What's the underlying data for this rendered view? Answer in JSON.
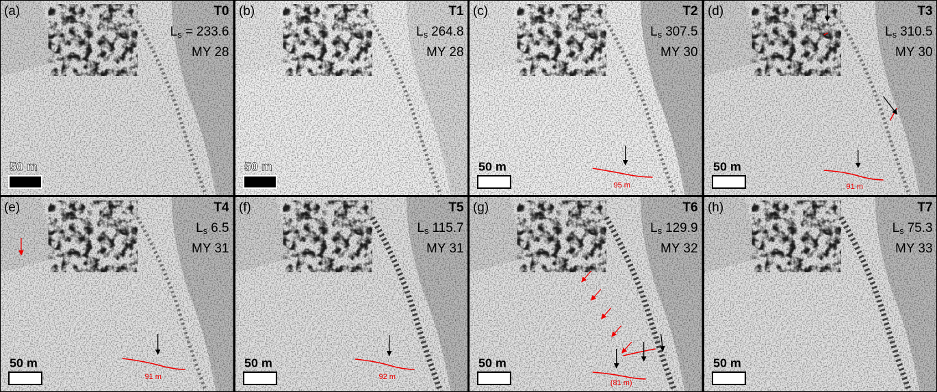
{
  "ls_symbol": {
    "main": "L",
    "sub": "s"
  },
  "panels": [
    {
      "label": "(a)",
      "time": "T0",
      "ls": "= 233.6",
      "my": "MY 28",
      "scale": "50 m",
      "scale_bar_fill": "#000000",
      "measurements": []
    },
    {
      "label": "(b)",
      "time": "T1",
      "ls": "264.8",
      "my": "MY 28",
      "scale": "50 m",
      "scale_bar_fill": "#000000",
      "measurements": []
    },
    {
      "label": "(c)",
      "time": "T2",
      "ls": "307.5",
      "my": "MY 30",
      "scale": "50 m",
      "scale_bar_fill": "#ffffff",
      "measurements": [
        "95 m"
      ]
    },
    {
      "label": "(d)",
      "time": "T3",
      "ls": "310.5",
      "my": "MY 30",
      "scale": "50 m",
      "scale_bar_fill": "#ffffff",
      "measurements": [
        "91 m"
      ]
    },
    {
      "label": "(e)",
      "time": "T4",
      "ls": "6.5",
      "my": "MY 31",
      "scale": "50 m",
      "scale_bar_fill": "#ffffff",
      "measurements": [
        "91 m"
      ]
    },
    {
      "label": "(f)",
      "time": "T5",
      "ls": "115.7",
      "my": "MY 31",
      "scale": "50 m",
      "scale_bar_fill": "#ffffff",
      "measurements": [
        "92 m"
      ]
    },
    {
      "label": "(g)",
      "time": "T6",
      "ls": "129.9",
      "my": "MY 32",
      "scale": "50 m",
      "scale_bar_fill": "#ffffff",
      "measurements": [
        "(81 m)"
      ]
    },
    {
      "label": "(h)",
      "time": "T7",
      "ls": "75.3",
      "my": "MY 33",
      "scale": "50 m",
      "scale_bar_fill": "#ffffff",
      "measurements": []
    }
  ]
}
